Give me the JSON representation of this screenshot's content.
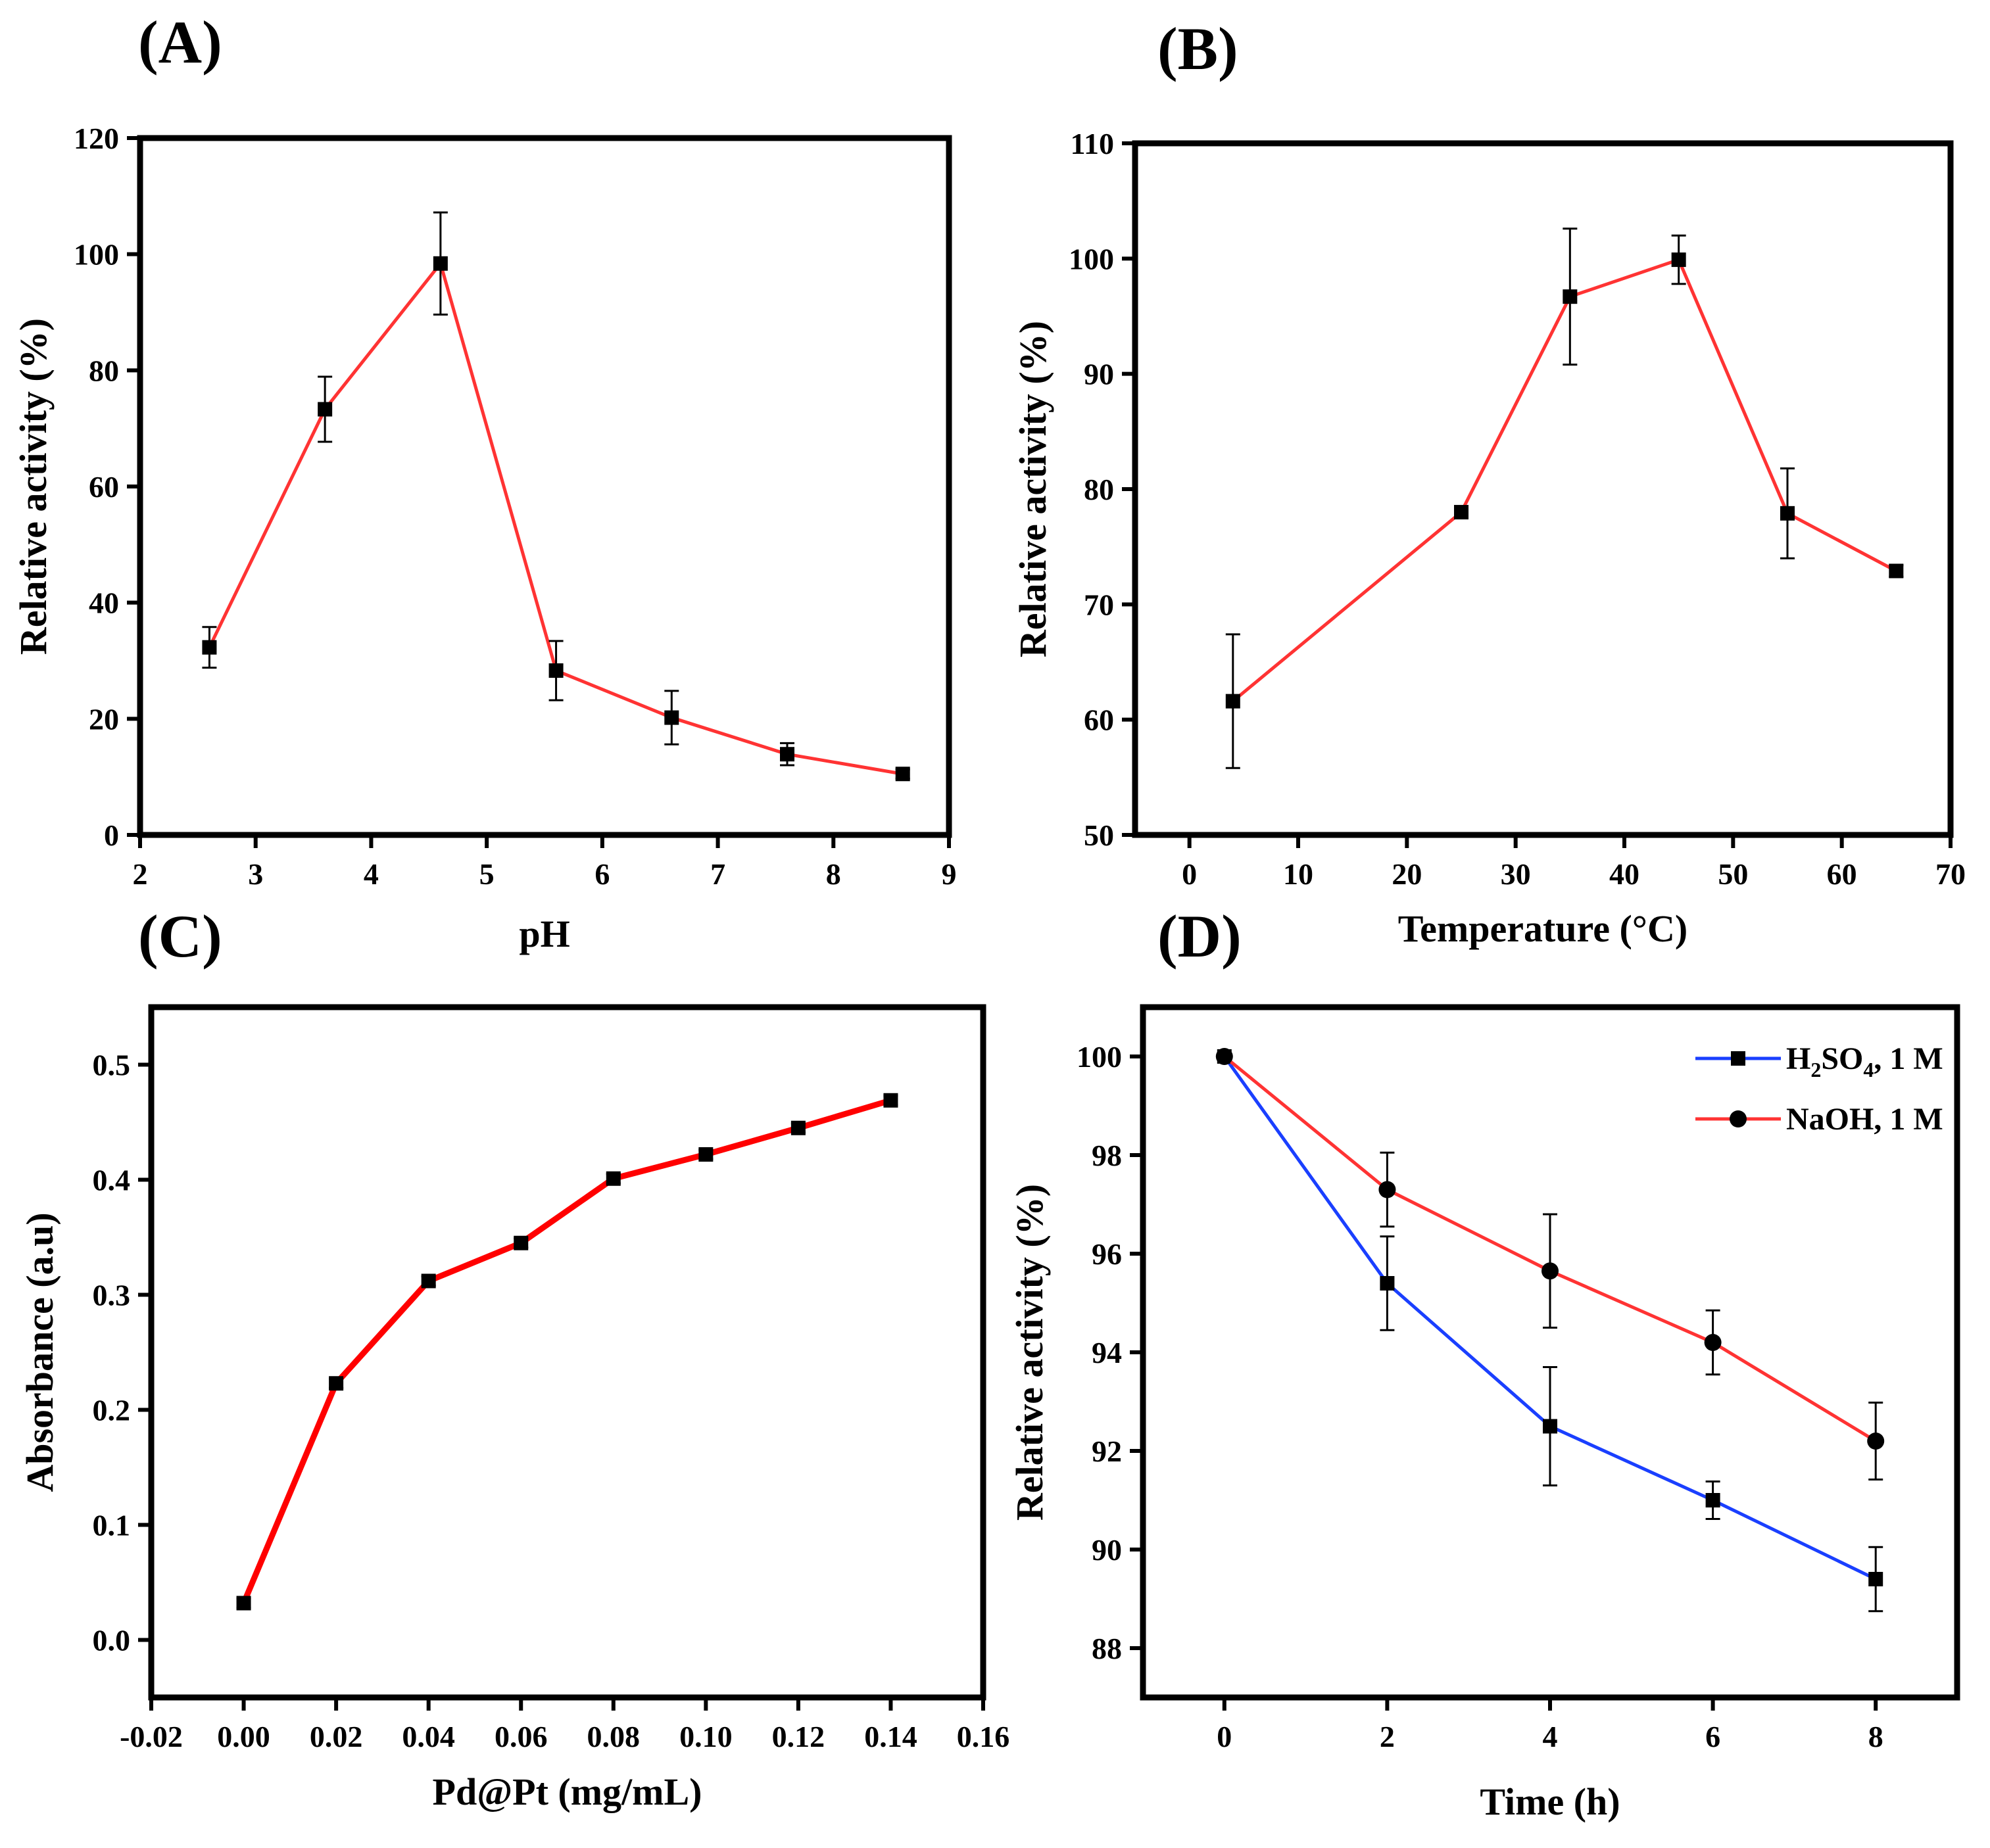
{
  "chart_data": [
    {
      "panel": "(A)",
      "type": "line",
      "xlabel": "pH",
      "ylabel": "Relative activity (%)",
      "xlim": [
        2,
        9
      ],
      "ylim": [
        0,
        120
      ],
      "xticks": [
        2,
        3,
        4,
        5,
        6,
        7,
        8,
        9
      ],
      "yticks": [
        0,
        20,
        40,
        60,
        80,
        100,
        120
      ],
      "series": [
        {
          "name": "activity",
          "color": "#ff3333",
          "marker": "square",
          "x": [
            2.6,
            3.6,
            4.6,
            5.6,
            6.6,
            7.6,
            8.6
          ],
          "values": [
            32.3,
            73.3,
            98.4,
            28.3,
            20.2,
            13.9,
            10.5
          ],
          "errors": [
            3.5,
            5.6,
            8.8,
            5.1,
            4.6,
            1.9,
            0.8
          ]
        }
      ]
    },
    {
      "panel": "(B)",
      "type": "line",
      "xlabel": "Temperature (°C)",
      "ylabel": "Relative activity (%)",
      "xlim": [
        -5,
        70
      ],
      "ylim": [
        50,
        110
      ],
      "xticks": [
        0,
        10,
        20,
        30,
        40,
        50,
        60,
        70
      ],
      "yticks": [
        50,
        60,
        70,
        80,
        90,
        100,
        110
      ],
      "series": [
        {
          "name": "activity",
          "color": "#ff3333",
          "marker": "square",
          "x": [
            4,
            25,
            35,
            45,
            55,
            65
          ],
          "values": [
            61.6,
            78.0,
            96.7,
            99.9,
            77.9,
            72.9
          ],
          "errors": [
            5.8,
            0.3,
            5.9,
            2.1,
            3.9,
            0.5
          ]
        }
      ]
    },
    {
      "panel": "(C)",
      "type": "line",
      "xlabel": "Pd@Pt (mg/mL)",
      "ylabel": "Absorbance (a.u)",
      "xlim": [
        -0.02,
        0.16
      ],
      "ylim": [
        -0.05,
        0.55
      ],
      "xticks": [
        "-0.02",
        "0.00",
        "0.02",
        "0.04",
        "0.06",
        "0.08",
        "0.10",
        "0.12",
        "0.14",
        "0.16"
      ],
      "yticks": [
        "0.0",
        "0.1",
        "0.2",
        "0.3",
        "0.4",
        "0.5"
      ],
      "series": [
        {
          "name": "absorbance",
          "color": "#ff0000",
          "marker": "square",
          "x": [
            0.0,
            0.02,
            0.04,
            0.06,
            0.08,
            0.1,
            0.12,
            0.14
          ],
          "values": [
            0.032,
            0.223,
            0.312,
            0.345,
            0.401,
            0.422,
            0.445,
            0.469
          ],
          "errors": [
            0.004,
            0.004,
            0.004,
            0.004,
            0.004,
            0.004,
            0.004,
            0.004
          ]
        }
      ]
    },
    {
      "panel": "(D)",
      "type": "line",
      "xlabel": "Time (h)",
      "ylabel": "Relative activity (%)",
      "xlim": [
        -1,
        9
      ],
      "ylim": [
        87,
        101
      ],
      "xticks": [
        0,
        2,
        4,
        6,
        8
      ],
      "yticks": [
        88,
        90,
        92,
        94,
        96,
        98,
        100
      ],
      "legend": "top-right",
      "series": [
        {
          "name": "H2SO4, 1 M",
          "legend_main": "H",
          "legend_sub1": "2",
          "legend_mid": "SO",
          "legend_sub2": "4",
          "legend_tail": ", 1 M",
          "color": "#1a3fff",
          "marker": "square",
          "x": [
            0,
            2,
            4,
            6,
            8
          ],
          "values": [
            100.0,
            95.4,
            92.5,
            91.0,
            89.4
          ],
          "errors": [
            0.0,
            0.95,
            1.2,
            0.38,
            0.65
          ]
        },
        {
          "name": "NaOH, 1 M",
          "legend_main": "NaOH, 1 M",
          "color": "#ff3333",
          "marker": "circle",
          "x": [
            0,
            2,
            4,
            6,
            8
          ],
          "values": [
            100.0,
            97.3,
            95.65,
            94.2,
            92.2
          ],
          "errors": [
            0.0,
            0.75,
            1.15,
            0.65,
            0.78
          ]
        }
      ]
    }
  ]
}
